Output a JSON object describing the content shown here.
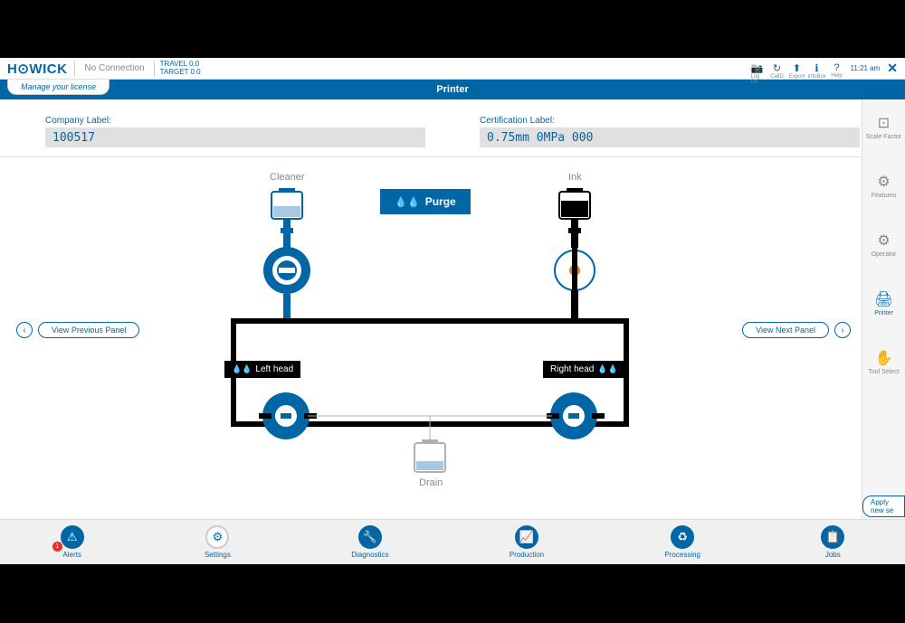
{
  "header": {
    "logo_text": "HOWICK",
    "connection_status": "No Connection",
    "travel": "TRAVEL 0.0",
    "target": "TARGET 0.0",
    "time": "11:21 am",
    "icons": [
      {
        "name": "log-on",
        "label": "Log On",
        "glyph": "📷"
      },
      {
        "name": "call-d",
        "label": "CallD",
        "glyph": "↻"
      },
      {
        "name": "export",
        "label": "Export",
        "glyph": "⬆"
      },
      {
        "name": "infobox",
        "label": "InfoBox",
        "glyph": "ℹ"
      },
      {
        "name": "help",
        "label": "Help",
        "glyph": "?"
      }
    ],
    "close_glyph": "✕"
  },
  "license_tab": "Manage your license",
  "title": "Printer",
  "form": {
    "company_label": "Company Label:",
    "company_value": "100517",
    "cert_label": "Certification Label:",
    "cert_value": "0.75mm 0MPa 000"
  },
  "purge_button": "Purge",
  "nav_prev": "View Previous Panel",
  "nav_next": "View Next Panel",
  "diagram": {
    "cleaner_label": "Cleaner",
    "ink_label": "Ink",
    "left_head": "Left head",
    "right_head": "Right head",
    "drain_label": "Drain",
    "colors": {
      "primary": "#0066a6",
      "light_blue": "#a6c8e0",
      "black": "#000000",
      "gray_line": "#b0b0b0",
      "orange": "#e08030"
    }
  },
  "sidebar": [
    {
      "name": "scale-factor",
      "label": "Scale Factor",
      "glyph": "⊡"
    },
    {
      "name": "features",
      "label": "Features",
      "glyph": "⚙"
    },
    {
      "name": "operator",
      "label": "Operator",
      "glyph": "⚙"
    },
    {
      "name": "printer",
      "label": "Printer",
      "glyph": "🖨",
      "active": true
    },
    {
      "name": "tool-select",
      "label": "Tool Select",
      "glyph": "✋"
    }
  ],
  "apply_new": "Apply new se",
  "tool_offsets": "Tool Offsets",
  "bottom_nav": [
    {
      "name": "alerts",
      "label": "Alerts",
      "glyph": "⚠",
      "badge": "1"
    },
    {
      "name": "settings",
      "label": "Settings",
      "glyph": "⚙",
      "style": "settings"
    },
    {
      "name": "diagnostics",
      "label": "Diagnostics",
      "glyph": "🔧"
    },
    {
      "name": "production",
      "label": "Production",
      "glyph": "📈"
    },
    {
      "name": "processing",
      "label": "Processing",
      "glyph": "♻"
    },
    {
      "name": "jobs",
      "label": "Jobs",
      "glyph": "📋"
    }
  ]
}
